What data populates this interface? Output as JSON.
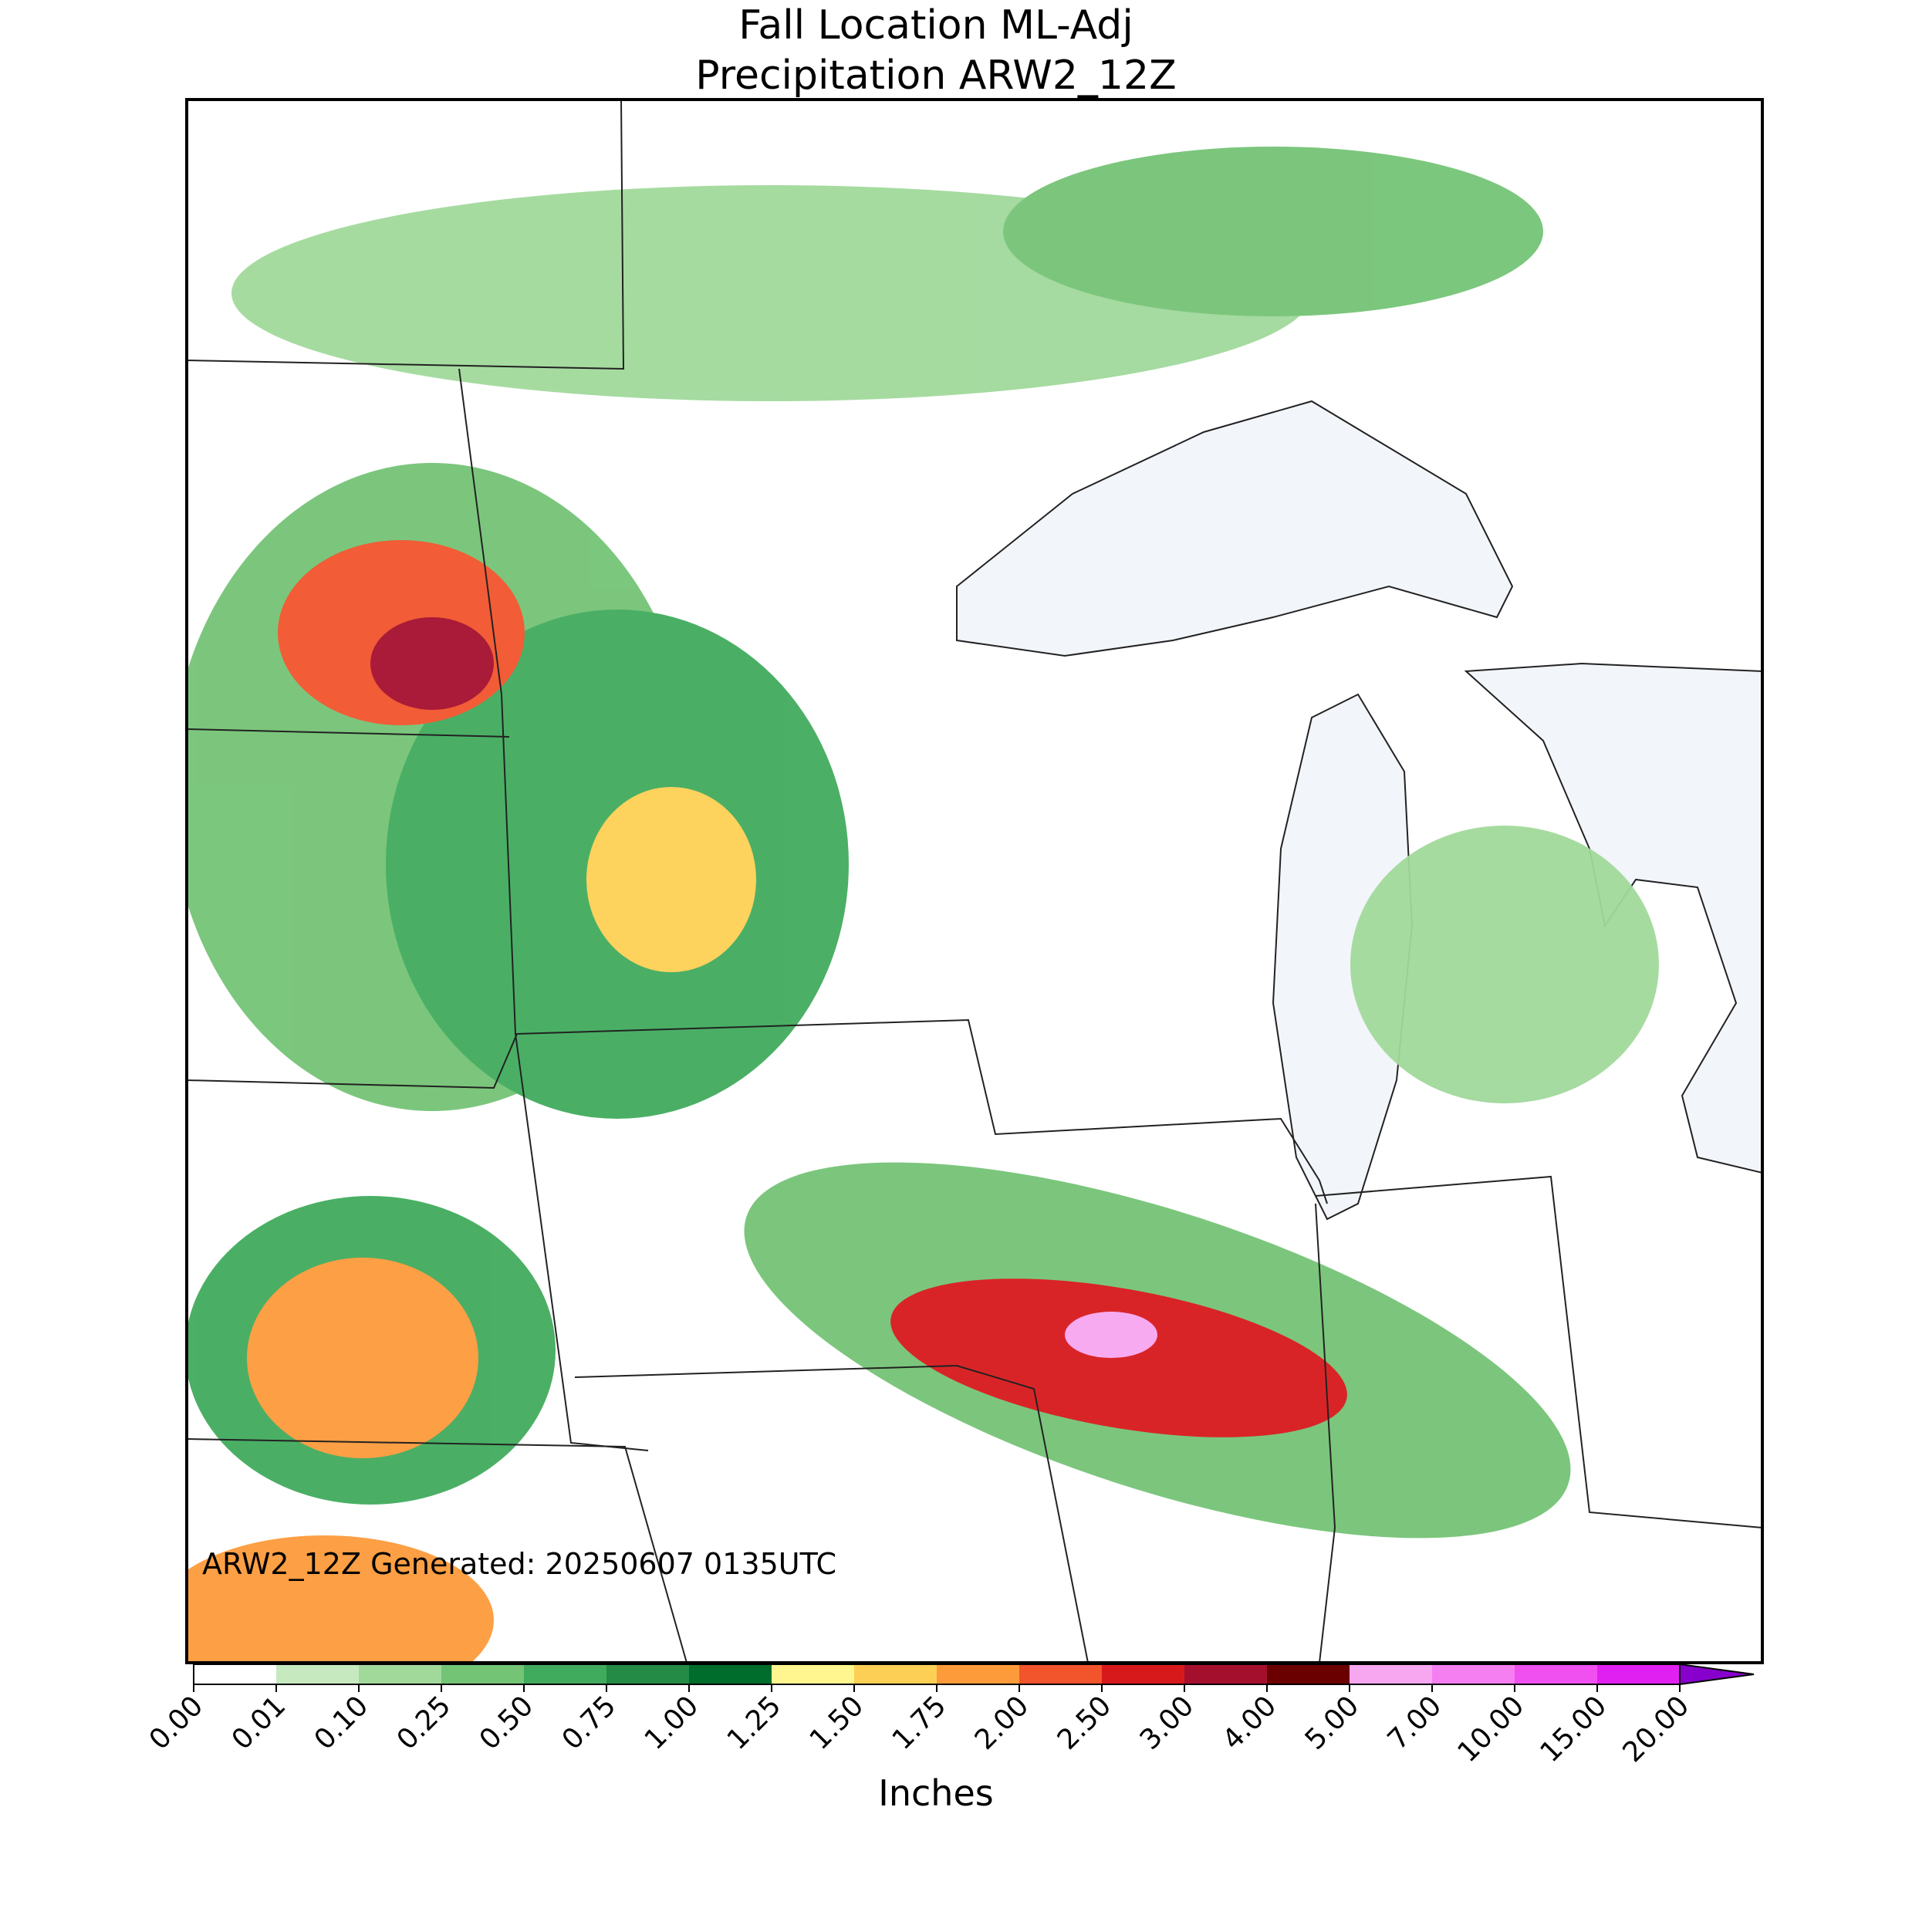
{
  "header": {
    "title_line1": "Fall Location ML-Adj",
    "title_line2": "Precipitation ARW2_12Z"
  },
  "annotation": "ARW2_12Z Generated: 20250607 0135UTC",
  "colorbar": {
    "label": "Inches",
    "ticks": [
      "0.00",
      "0.01",
      "0.10",
      "0.25",
      "0.50",
      "0.75",
      "1.00",
      "1.25",
      "1.50",
      "1.75",
      "2.00",
      "2.50",
      "3.00",
      "4.00",
      "5.00",
      "7.00",
      "10.00",
      "15.00",
      "20.00"
    ],
    "colors": [
      "#ffffff",
      "#c7e9c0",
      "#a1d99b",
      "#74c476",
      "#41ab5d",
      "#238b45",
      "#006d2c",
      "#fff68f",
      "#fdd055",
      "#fd9a3a",
      "#f2542c",
      "#d7191c",
      "#a50f2e",
      "#6b0000",
      "#f7a6f0",
      "#f57ff0",
      "#f050f0",
      "#e020f0",
      "#a000d0"
    ],
    "extend_color": "#8800cc"
  }
}
